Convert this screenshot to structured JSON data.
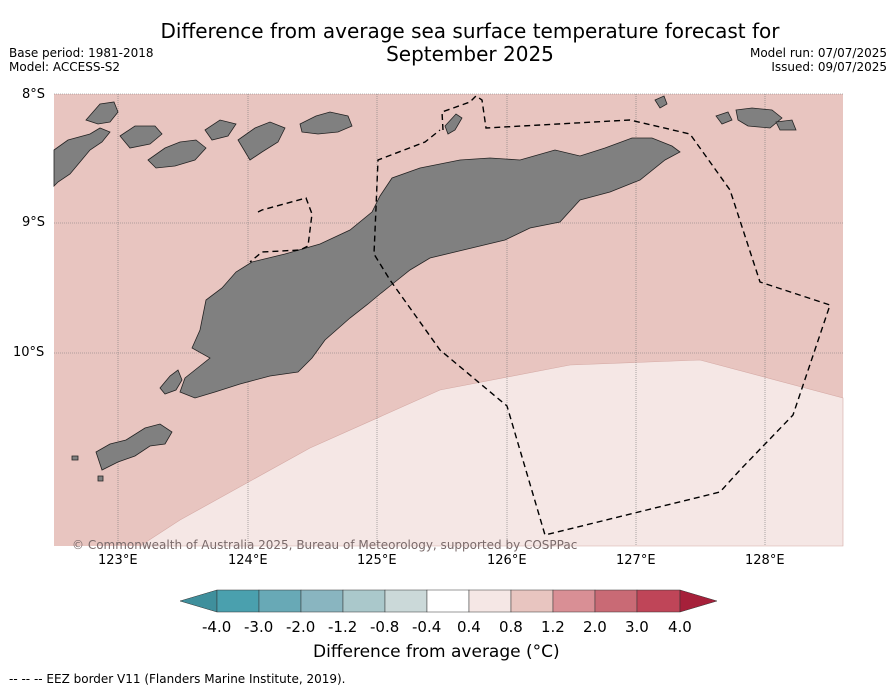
{
  "title_line1": "Difference from average sea surface temperature forecast for",
  "title_line2": "September 2025",
  "base_period": "Base period: 1981-2018",
  "model": "Model: ACCESS-S2",
  "model_run": "Model run: 07/07/2025",
  "issued": "Issued: 09/07/2025",
  "lat_labels": [
    "8°S",
    "9°S",
    "10°S"
  ],
  "lon_labels": [
    "123°E",
    "124°E",
    "125°E",
    "126°E",
    "127°E",
    "128°E"
  ],
  "copyright": "© Commonwealth of Australia 2025, Bureau of Meteorology, supported by COSPPac",
  "colorbar": {
    "ticks": [
      "-4.0",
      "-3.0",
      "-2.0",
      "-1.2",
      "-0.8",
      "-0.4",
      "0.4",
      "0.8",
      "1.2",
      "2.0",
      "3.0",
      "4.0"
    ],
    "colors": [
      "#3f8f9c",
      "#4aa0ae",
      "#68a9b6",
      "#89b5c0",
      "#aac8cb",
      "#cbd9d9",
      "#ffffff",
      "#f5e7e5",
      "#e8c5c0",
      "#d98f95",
      "#c96a75",
      "#bf4558",
      "#a6203a"
    ],
    "label": "Difference from average (°C)"
  },
  "map_colors": {
    "anomaly_0.8_1.2": "#e8c5c0",
    "anomaly_0.4_0.8": "#f5e7e5",
    "land": "#808080"
  },
  "footnote": "--  --  -- EEZ border V11 (Flanders Marine Institute, 2019)."
}
